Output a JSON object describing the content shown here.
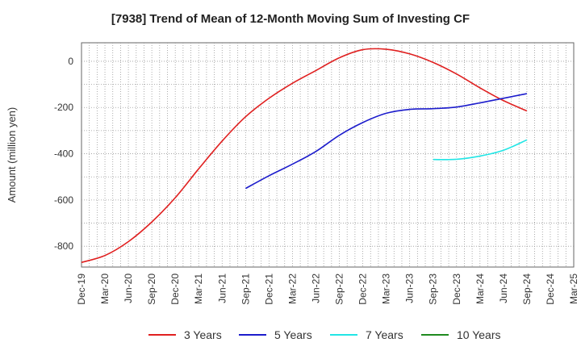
{
  "chart_data": {
    "type": "line",
    "title": "[7938]  Trend of Mean of 12-Month Moving Sum of Investing CF",
    "ylabel": "Amount (million yen)",
    "xlabel": "",
    "ylim": [
      -890,
      80
    ],
    "yticks": [
      0,
      -200,
      -400,
      -600,
      -800
    ],
    "ytick_labels": [
      "0",
      "-200",
      "-400",
      "-600",
      "-800"
    ],
    "xticks": [
      "Dec-19",
      "Mar-20",
      "Jun-20",
      "Sep-20",
      "Dec-20",
      "Mar-21",
      "Jun-21",
      "Sep-21",
      "Dec-21",
      "Mar-22",
      "Jun-22",
      "Sep-22",
      "Dec-22",
      "Mar-23",
      "Jun-23",
      "Sep-23",
      "Dec-23",
      "Mar-24",
      "Jun-24",
      "Sep-24",
      "Dec-24",
      "Mar-25"
    ],
    "grid": true,
    "legend_position": "bottom",
    "series": [
      {
        "name": "3 Years",
        "color": "#e02020",
        "x": [
          "Dec-19",
          "Mar-20",
          "Jun-20",
          "Sep-20",
          "Dec-20",
          "Mar-21",
          "Jun-21",
          "Sep-21",
          "Dec-21",
          "Mar-22",
          "Jun-22",
          "Sep-22",
          "Dec-22",
          "Mar-23",
          "Jun-23",
          "Sep-23",
          "Dec-23",
          "Mar-24",
          "Jun-24",
          "Sep-24"
        ],
        "values": [
          -870,
          -840,
          -780,
          -695,
          -590,
          -465,
          -345,
          -240,
          -160,
          -95,
          -40,
          15,
          50,
          52,
          32,
          -5,
          -55,
          -115,
          -170,
          -215
        ]
      },
      {
        "name": "5 Years",
        "color": "#1c1ccc",
        "x": [
          "Sep-21",
          "Dec-21",
          "Mar-22",
          "Jun-22",
          "Sep-22",
          "Dec-22",
          "Mar-23",
          "Jun-23",
          "Sep-23",
          "Dec-23",
          "Mar-24",
          "Jun-24",
          "Sep-24"
        ],
        "values": [
          -550,
          -495,
          -445,
          -390,
          -320,
          -265,
          -225,
          -208,
          -205,
          -198,
          -180,
          -160,
          -140
        ]
      },
      {
        "name": "7 Years",
        "color": "#22e5e5",
        "x": [
          "Sep-23",
          "Dec-23",
          "Mar-24",
          "Jun-24",
          "Sep-24"
        ],
        "values": [
          -425,
          -424,
          -410,
          -385,
          -340
        ]
      },
      {
        "name": "10 Years",
        "color": "#1f8a1f",
        "x": [],
        "values": []
      }
    ]
  }
}
